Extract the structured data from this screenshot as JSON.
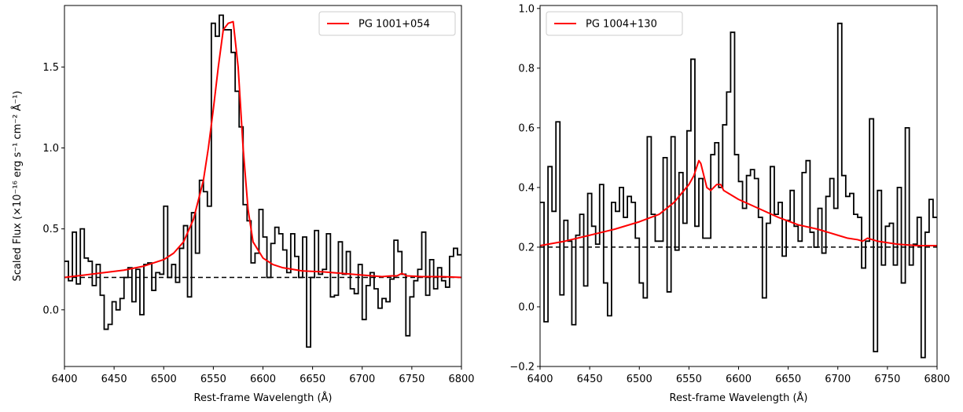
{
  "chart_data": [
    {
      "type": "line",
      "panel": "left",
      "xlabel": "Rest-frame Wavelength (Å)",
      "ylabel": "Scaled Flux (×10⁻¹⁶ erg s⁻¹ cm⁻² Å⁻¹)",
      "xlim": [
        6400,
        6800
      ],
      "ylim": [
        -0.35,
        1.88
      ],
      "xticks": [
        6400,
        6450,
        6500,
        6550,
        6600,
        6650,
        6700,
        6750,
        6800
      ],
      "xtick_labels": [
        "6400",
        "6450",
        "6500",
        "6550",
        "6600",
        "6650",
        "6700",
        "6750",
        "6800"
      ],
      "yticks": [
        0.0,
        0.5,
        1.0,
        1.5
      ],
      "ytick_labels": [
        "0.0",
        "0.5",
        "1.0",
        "1.5"
      ],
      "grid": false,
      "legend_position": "top-right",
      "baseline": 0.2,
      "series": [
        {
          "name": "",
          "style": "step",
          "color": "#000000",
          "x": [
            6400,
            6404,
            6408,
            6412,
            6416,
            6420,
            6424,
            6428,
            6432,
            6436,
            6440,
            6444,
            6448,
            6452,
            6456,
            6460,
            6464,
            6468,
            6472,
            6476,
            6480,
            6484,
            6488,
            6492,
            6496,
            6500,
            6504,
            6508,
            6512,
            6516,
            6520,
            6524,
            6528,
            6532,
            6536,
            6540,
            6544,
            6548,
            6552,
            6556,
            6560,
            6564,
            6568,
            6572,
            6576,
            6580,
            6584,
            6588,
            6592,
            6596,
            6600,
            6604,
            6608,
            6612,
            6616,
            6620,
            6624,
            6628,
            6632,
            6636,
            6640,
            6644,
            6648,
            6652,
            6656,
            6660,
            6664,
            6668,
            6672,
            6676,
            6680,
            6684,
            6688,
            6692,
            6696,
            6700,
            6704,
            6708,
            6712,
            6716,
            6720,
            6724,
            6728,
            6732,
            6736,
            6740,
            6744,
            6748,
            6752,
            6756,
            6760,
            6764,
            6768,
            6772,
            6776,
            6780,
            6784,
            6788,
            6792,
            6796
          ],
          "values": [
            0.3,
            0.18,
            0.48,
            0.16,
            0.5,
            0.32,
            0.3,
            0.15,
            0.28,
            0.09,
            -0.12,
            -0.09,
            0.05,
            0.0,
            0.07,
            0.2,
            0.26,
            0.05,
            0.25,
            -0.03,
            0.28,
            0.29,
            0.12,
            0.23,
            0.22,
            0.64,
            0.2,
            0.28,
            0.17,
            0.38,
            0.52,
            0.08,
            0.6,
            0.35,
            0.8,
            0.73,
            0.64,
            1.77,
            1.69,
            1.82,
            1.73,
            1.73,
            1.59,
            1.35,
            1.13,
            0.65,
            0.55,
            0.29,
            0.35,
            0.62,
            0.45,
            0.2,
            0.41,
            0.51,
            0.47,
            0.37,
            0.23,
            0.47,
            0.33,
            0.2,
            0.45,
            -0.23,
            0.2,
            0.49,
            0.22,
            0.25,
            0.47,
            0.08,
            0.09,
            0.42,
            0.22,
            0.36,
            0.13,
            0.1,
            0.28,
            -0.06,
            0.15,
            0.23,
            0.13,
            0.01,
            0.07,
            0.05,
            0.19,
            0.43,
            0.36,
            0.22,
            -0.16,
            0.08,
            0.18,
            0.25,
            0.48,
            0.09,
            0.31,
            0.13,
            0.26,
            0.18,
            0.14,
            0.33,
            0.38,
            0.34
          ]
        },
        {
          "name": "PG 1001+054",
          "style": "line",
          "color": "#ff0000",
          "x": [
            6400,
            6420,
            6440,
            6460,
            6480,
            6500,
            6510,
            6520,
            6530,
            6540,
            6545,
            6550,
            6555,
            6560,
            6565,
            6570,
            6575,
            6580,
            6585,
            6590,
            6600,
            6610,
            6620,
            6640,
            6660,
            6680,
            6700,
            6720,
            6730,
            6735,
            6740,
            6745,
            6760,
            6780,
            6800
          ],
          "values": [
            0.2,
            0.215,
            0.23,
            0.245,
            0.27,
            0.31,
            0.35,
            0.42,
            0.56,
            0.8,
            1.0,
            1.24,
            1.5,
            1.73,
            1.77,
            1.78,
            1.5,
            1.0,
            0.62,
            0.42,
            0.32,
            0.28,
            0.26,
            0.24,
            0.235,
            0.225,
            0.215,
            0.205,
            0.21,
            0.21,
            0.225,
            0.21,
            0.205,
            0.205,
            0.2
          ]
        }
      ]
    },
    {
      "type": "line",
      "panel": "right",
      "xlabel": "Rest-frame Wavelength (Å)",
      "ylabel": "",
      "xlim": [
        6400,
        6800
      ],
      "ylim": [
        -0.2,
        1.01
      ],
      "xticks": [
        6400,
        6450,
        6500,
        6550,
        6600,
        6650,
        6700,
        6750,
        6800
      ],
      "xtick_labels": [
        "6400",
        "6450",
        "6500",
        "6550",
        "6600",
        "6650",
        "6700",
        "6750",
        "6800"
      ],
      "yticks": [
        -0.2,
        0.0,
        0.2,
        0.4,
        0.6,
        0.8,
        1.0
      ],
      "ytick_labels": [
        "−0.2",
        "0.0",
        "0.2",
        "0.4",
        "0.6",
        "0.8",
        "1.0"
      ],
      "grid": false,
      "legend_position": "top-left",
      "baseline": 0.2,
      "series": [
        {
          "name": "",
          "style": "step",
          "color": "#000000",
          "x": [
            6400,
            6404,
            6408,
            6412,
            6416,
            6420,
            6424,
            6428,
            6432,
            6436,
            6440,
            6444,
            6448,
            6452,
            6456,
            6460,
            6464,
            6468,
            6472,
            6476,
            6480,
            6484,
            6488,
            6492,
            6496,
            6500,
            6504,
            6508,
            6512,
            6516,
            6520,
            6524,
            6528,
            6532,
            6536,
            6540,
            6544,
            6548,
            6552,
            6556,
            6560,
            6564,
            6568,
            6572,
            6576,
            6580,
            6584,
            6588,
            6592,
            6596,
            6600,
            6604,
            6608,
            6612,
            6616,
            6620,
            6624,
            6628,
            6632,
            6636,
            6640,
            6644,
            6648,
            6652,
            6656,
            6660,
            6664,
            6668,
            6672,
            6676,
            6680,
            6684,
            6688,
            6692,
            6696,
            6700,
            6704,
            6708,
            6712,
            6716,
            6720,
            6724,
            6728,
            6732,
            6736,
            6740,
            6744,
            6748,
            6752,
            6756,
            6760,
            6764,
            6768,
            6772,
            6776,
            6780,
            6784,
            6788,
            6792,
            6796
          ],
          "values": [
            0.35,
            -0.05,
            0.47,
            0.32,
            0.62,
            0.04,
            0.29,
            0.22,
            -0.06,
            0.24,
            0.31,
            0.07,
            0.38,
            0.27,
            0.21,
            0.41,
            0.08,
            -0.03,
            0.35,
            0.32,
            0.4,
            0.3,
            0.37,
            0.35,
            0.23,
            0.08,
            0.03,
            0.57,
            0.31,
            0.22,
            0.22,
            0.5,
            0.05,
            0.57,
            0.19,
            0.45,
            0.28,
            0.59,
            0.83,
            0.27,
            0.43,
            0.23,
            0.23,
            0.51,
            0.55,
            0.4,
            0.61,
            0.72,
            0.92,
            0.51,
            0.42,
            0.33,
            0.44,
            0.46,
            0.43,
            0.3,
            0.03,
            0.28,
            0.47,
            0.31,
            0.35,
            0.17,
            0.29,
            0.39,
            0.27,
            0.22,
            0.45,
            0.49,
            0.25,
            0.2,
            0.33,
            0.18,
            0.37,
            0.43,
            0.33,
            0.95,
            0.44,
            0.37,
            0.38,
            0.31,
            0.3,
            0.13,
            0.22,
            0.63,
            -0.15,
            0.39,
            0.14,
            0.27,
            0.28,
            0.14,
            0.4,
            0.08,
            0.6,
            0.14,
            0.21,
            0.3,
            -0.17,
            0.25,
            0.36,
            0.3
          ]
        },
        {
          "name": "PG 1004+130",
          "style": "line",
          "color": "#ff0000",
          "x": [
            6400,
            6425,
            6450,
            6475,
            6500,
            6520,
            6535,
            6545,
            6550,
            6555,
            6560,
            6562,
            6565,
            6568,
            6572,
            6578,
            6582,
            6585,
            6590,
            6600,
            6620,
            6640,
            6660,
            6680,
            6690,
            6700,
            6710,
            6720,
            6725,
            6730,
            6740,
            6760,
            6780,
            6800
          ],
          "values": [
            0.205,
            0.22,
            0.24,
            0.26,
            0.285,
            0.31,
            0.35,
            0.39,
            0.41,
            0.44,
            0.49,
            0.48,
            0.44,
            0.4,
            0.39,
            0.41,
            0.41,
            0.39,
            0.38,
            0.36,
            0.33,
            0.3,
            0.275,
            0.26,
            0.25,
            0.24,
            0.23,
            0.225,
            0.22,
            0.23,
            0.22,
            0.21,
            0.205,
            0.205
          ]
        }
      ]
    }
  ]
}
